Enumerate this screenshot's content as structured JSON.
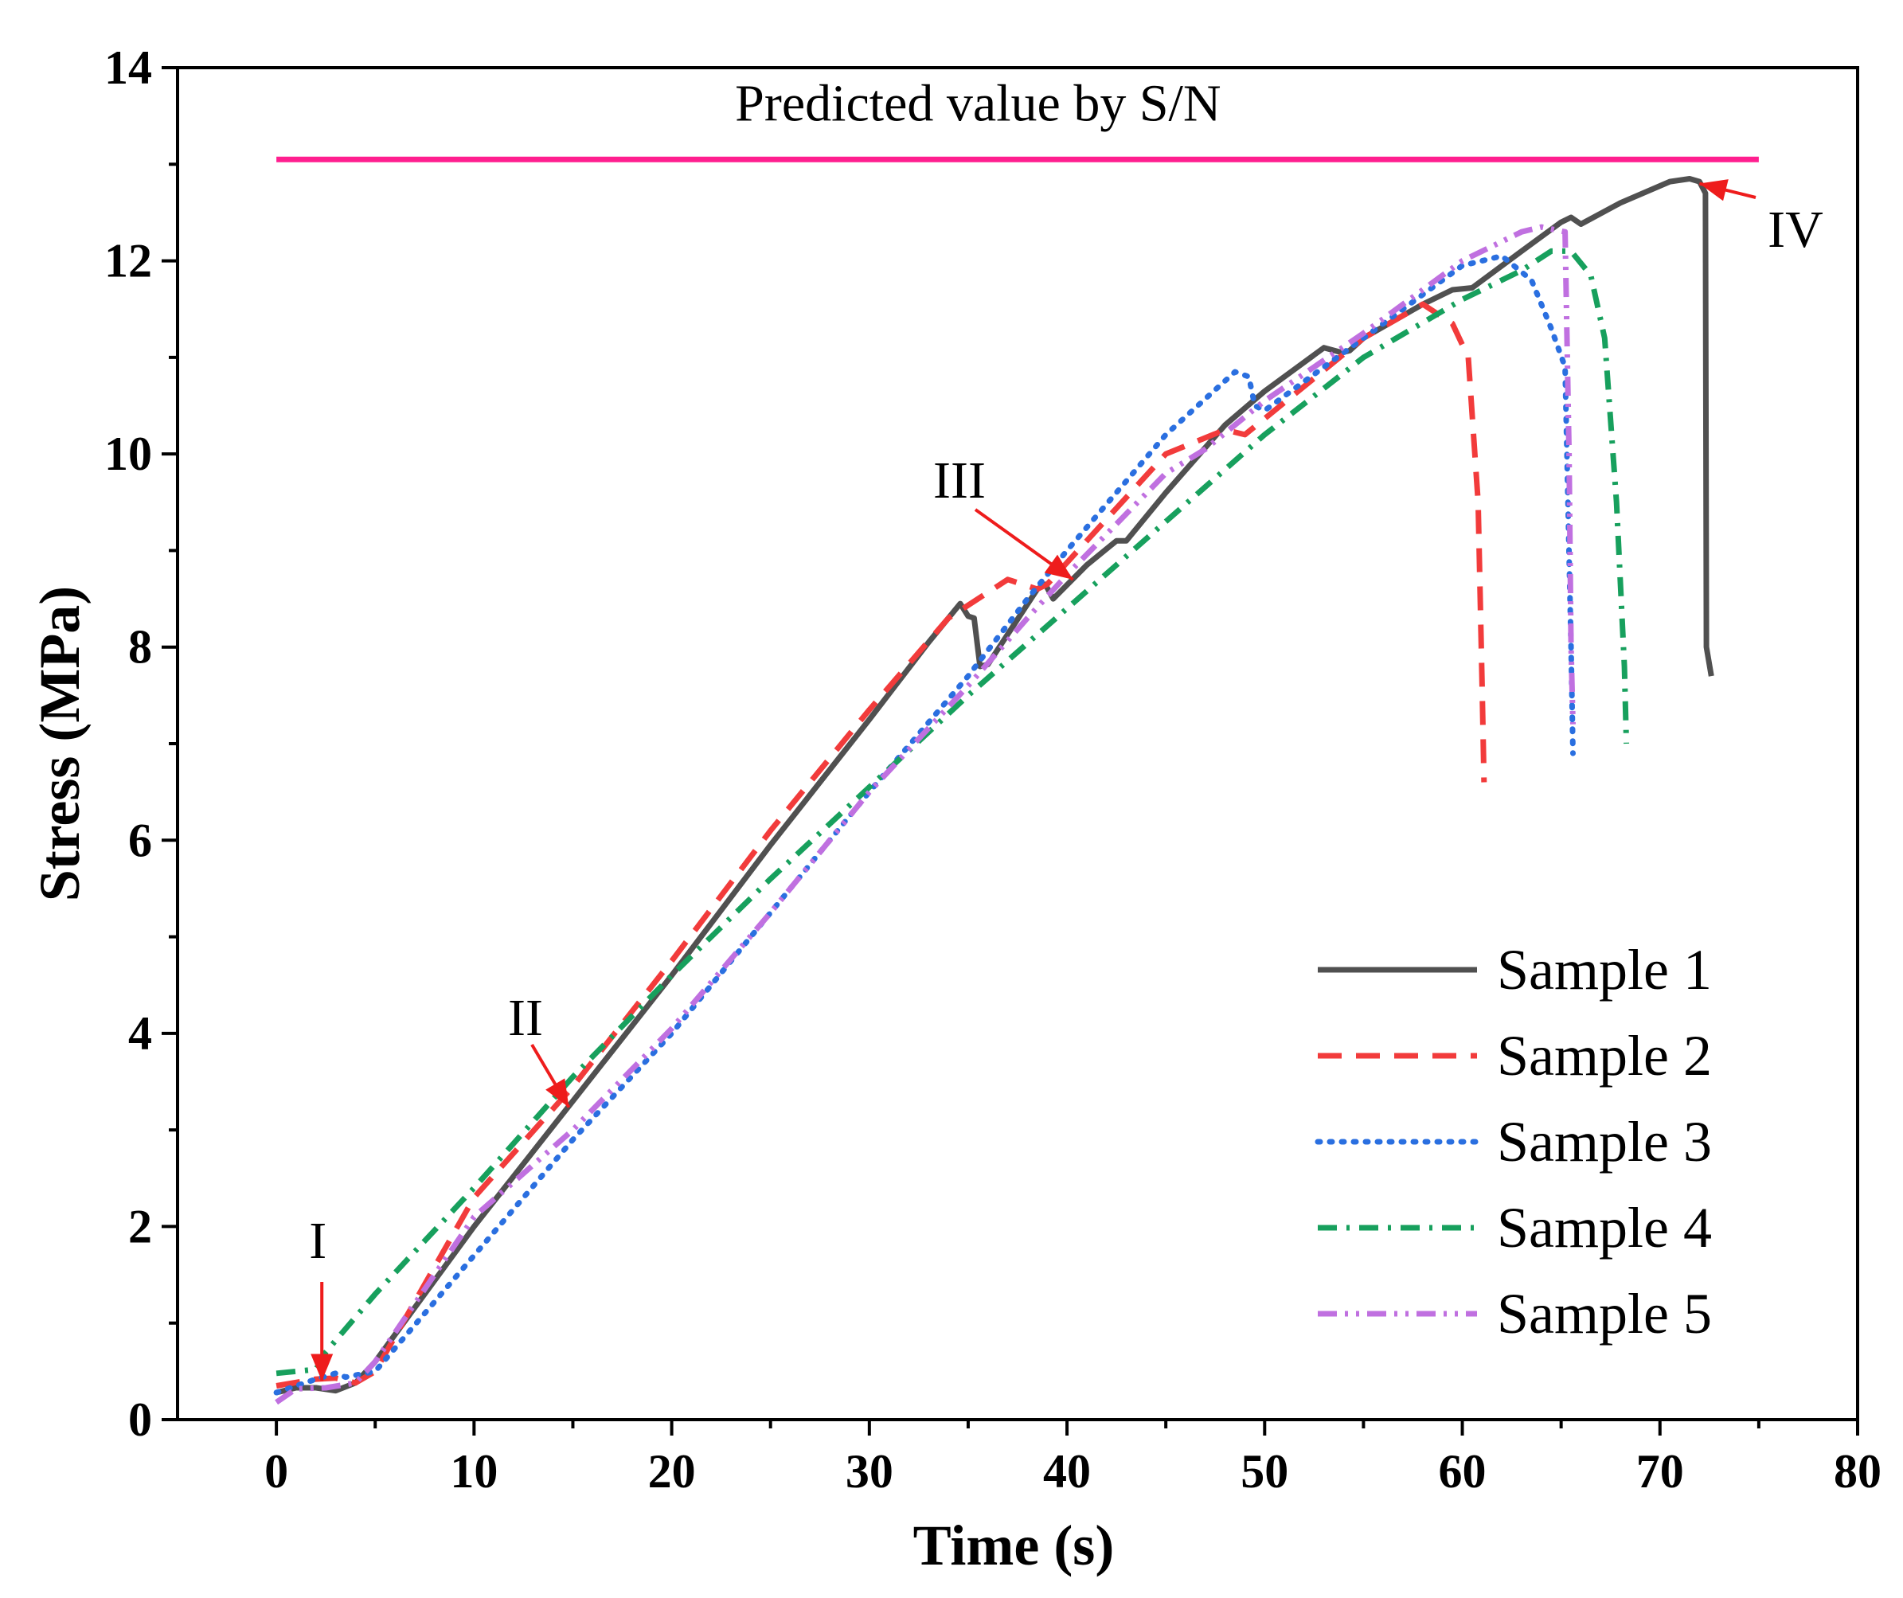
{
  "chart_data": {
    "type": "line",
    "xlabel": "Time (s)",
    "ylabel": "Stress (MPa)",
    "xlim": [
      -5,
      80
    ],
    "ylim": [
      0,
      14
    ],
    "xticks": [
      0,
      10,
      20,
      30,
      40,
      50,
      60,
      70,
      80
    ],
    "yticks": [
      0,
      2,
      4,
      6,
      8,
      10,
      12,
      14
    ],
    "grid": false,
    "legend_position": "bottom-right",
    "reference_line": {
      "label": "Predicted value by S/N",
      "y": 13.05,
      "x_range": [
        0,
        75
      ],
      "color": "#ff1f8f"
    },
    "annotations": [
      {
        "label": "I",
        "x": 2.3,
        "y": 0.4
      },
      {
        "label": "II",
        "x": 14.8,
        "y": 3.3
      },
      {
        "label": "III",
        "x": 40.3,
        "y": 8.7
      },
      {
        "label": "IV",
        "x": 72.0,
        "y": 12.8
      }
    ],
    "series": [
      {
        "name": "Sample 1",
        "color": "#505050",
        "style": "solid",
        "x": [
          0,
          1,
          2,
          3,
          4,
          5,
          10,
          15,
          20,
          25,
          30,
          33,
          34.6,
          35,
          35.3,
          35.6,
          36,
          38.5,
          38.9,
          39.3,
          41,
          42.5,
          43,
          45,
          48,
          50,
          53,
          53.9,
          54.3,
          55,
          58,
          59.5,
          60.5,
          63,
          65,
          65.5,
          66,
          68,
          70.5,
          71.5,
          72,
          72.3,
          72.35,
          72.6,
          72.6
        ],
        "y": [
          0.28,
          0.33,
          0.33,
          0.3,
          0.38,
          0.6,
          2.0,
          3.3,
          4.6,
          5.95,
          7.25,
          8.05,
          8.45,
          8.32,
          8.3,
          7.8,
          7.82,
          8.6,
          8.65,
          8.5,
          8.85,
          9.1,
          9.1,
          9.6,
          10.3,
          10.65,
          11.1,
          11.05,
          11.07,
          11.2,
          11.55,
          11.7,
          11.72,
          12.1,
          12.4,
          12.45,
          12.38,
          12.6,
          12.82,
          12.85,
          12.82,
          12.7,
          8.0,
          7.7,
          7.7
        ]
      },
      {
        "name": "Sample 2",
        "color": "#f23b3b",
        "style": "dashed",
        "x": [
          0,
          2,
          3,
          4,
          5,
          10,
          15,
          20,
          25,
          30,
          34,
          37,
          38.5,
          39,
          45,
          48,
          49,
          55,
          58,
          59.5,
          60.3,
          60.8,
          61,
          61.1
        ],
        "y": [
          0.35,
          0.42,
          0.43,
          0.38,
          0.5,
          2.3,
          3.45,
          4.75,
          6.1,
          7.35,
          8.3,
          8.7,
          8.6,
          8.65,
          10.0,
          10.25,
          10.2,
          11.2,
          11.55,
          11.35,
          11.0,
          9.5,
          7.6,
          6.6
        ]
      },
      {
        "name": "Sample 3",
        "color": "#2a6fe0",
        "style": "dotted",
        "x": [
          0,
          2,
          3,
          3.5,
          5,
          10,
          15,
          20,
          25,
          30,
          35,
          38,
          40,
          45,
          48.5,
          49.2,
          49.5,
          50,
          55,
          60,
          62,
          63.5,
          64.5,
          65.2,
          65.5,
          65.6
        ],
        "y": [
          0.28,
          0.42,
          0.48,
          0.44,
          0.5,
          1.7,
          2.9,
          4.0,
          5.25,
          6.5,
          7.7,
          8.5,
          9.0,
          10.2,
          10.85,
          10.8,
          10.5,
          10.45,
          11.2,
          11.95,
          12.05,
          11.8,
          11.3,
          10.9,
          8.0,
          6.9
        ]
      },
      {
        "name": "Sample 4",
        "color": "#17a05d",
        "style": "dashdot",
        "x": [
          0,
          2,
          2.5,
          5,
          10,
          15,
          20,
          25,
          30,
          35,
          40,
          45,
          50,
          55,
          60,
          63,
          64.5,
          65.5,
          66.5,
          67.2,
          67.8,
          68.2,
          68.3
        ],
        "y": [
          0.48,
          0.52,
          0.7,
          1.3,
          2.4,
          3.55,
          4.6,
          5.6,
          6.55,
          7.5,
          8.4,
          9.3,
          10.2,
          11.0,
          11.6,
          11.9,
          12.1,
          12.1,
          11.85,
          11.2,
          9.5,
          7.8,
          7.0
        ]
      },
      {
        "name": "Sample 5",
        "color": "#c070e0",
        "style": "dashdotdot",
        "x": [
          0,
          1,
          2.5,
          4,
          5,
          10,
          15,
          20,
          25,
          30,
          35,
          38,
          40,
          45,
          47,
          50,
          55,
          60,
          63,
          64,
          65.2,
          65.4,
          65.5,
          65.6
        ],
        "y": [
          0.18,
          0.32,
          0.33,
          0.38,
          0.6,
          2.1,
          3.0,
          4.05,
          5.25,
          6.5,
          7.6,
          8.3,
          8.75,
          9.8,
          10.05,
          10.55,
          11.25,
          12.0,
          12.3,
          12.35,
          12.3,
          10.0,
          8.0,
          7.2
        ]
      }
    ]
  }
}
